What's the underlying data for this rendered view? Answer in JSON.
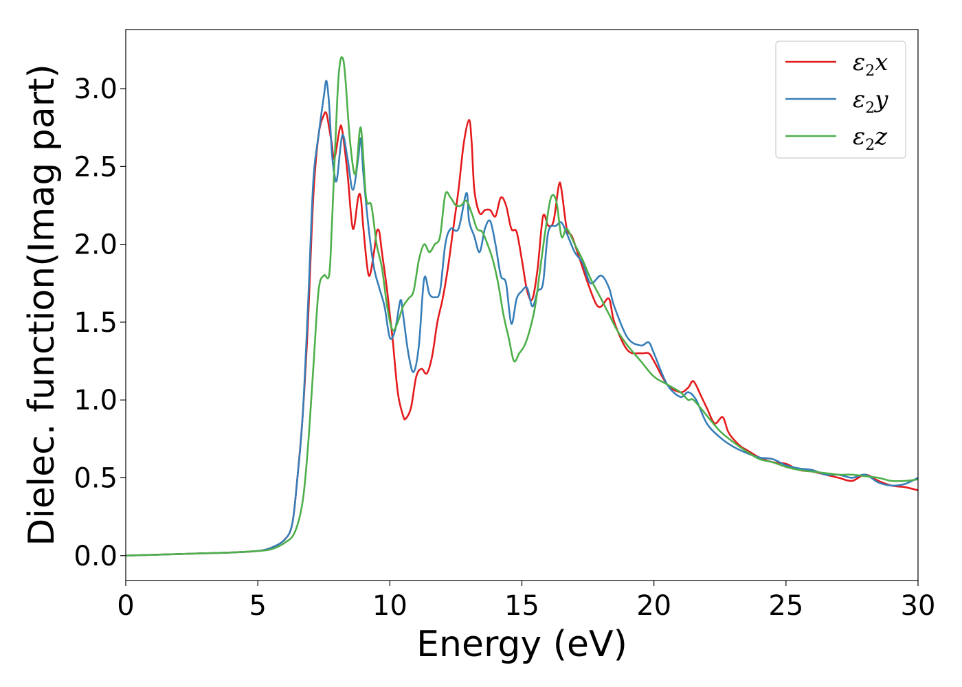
{
  "chart_data": {
    "type": "line",
    "xlabel": "Energy (eV)",
    "ylabel": "Dielec. function(Imag part)",
    "xlim": [
      0,
      30
    ],
    "ylim": [
      -0.16,
      3.38
    ],
    "xticks": [
      0,
      5,
      10,
      15,
      20,
      25,
      30
    ],
    "yticks": [
      0.0,
      0.5,
      1.0,
      1.5,
      2.0,
      2.5,
      3.0
    ],
    "xtick_labels": [
      "0",
      "5",
      "10",
      "15",
      "20",
      "25",
      "30"
    ],
    "ytick_labels": [
      "0.0",
      "0.5",
      "1.0",
      "1.5",
      "2.0",
      "2.5",
      "3.0"
    ],
    "grid": false,
    "legend_position": "top-right",
    "series": [
      {
        "name": "ε2x",
        "base": "ε",
        "sub": "2",
        "var": "x",
        "color": "#e41a1c",
        "x": [
          0,
          1,
          2,
          3,
          4,
          5,
          5.5,
          6,
          6.3,
          6.5,
          6.7,
          6.9,
          7.1,
          7.3,
          7.5,
          7.6,
          7.7,
          7.8,
          7.9,
          8.1,
          8.2,
          8.4,
          8.6,
          8.8,
          8.9,
          9.0,
          9.2,
          9.4,
          9.5,
          9.6,
          9.7,
          9.9,
          10.1,
          10.3,
          10.5,
          10.6,
          10.8,
          11.0,
          11.2,
          11.4,
          11.6,
          11.8,
          12.0,
          12.2,
          12.4,
          12.6,
          12.8,
          13.0,
          13.1,
          13.2,
          13.4,
          13.6,
          13.8,
          14.0,
          14.2,
          14.4,
          14.6,
          14.8,
          15.0,
          15.2,
          15.4,
          15.6,
          15.8,
          16.0,
          16.2,
          16.4,
          16.5,
          16.7,
          16.9,
          17.2,
          17.5,
          17.8,
          18.0,
          18.3,
          18.5,
          19.0,
          19.5,
          19.8,
          20.0,
          20.5,
          21.0,
          21.3,
          21.5,
          21.8,
          22.0,
          22.3,
          22.6,
          22.8,
          23.0,
          23.3,
          23.5,
          24.0,
          24.5,
          25.0,
          25.5,
          26.0,
          26.5,
          27.0,
          27.5,
          28.0,
          28.5,
          29.0,
          29.5,
          30.0
        ],
        "values": [
          0.0,
          0.005,
          0.01,
          0.015,
          0.02,
          0.03,
          0.05,
          0.1,
          0.2,
          0.5,
          0.9,
          1.5,
          2.3,
          2.7,
          2.83,
          2.84,
          2.75,
          2.65,
          2.55,
          2.74,
          2.73,
          2.45,
          2.1,
          2.3,
          2.3,
          2.1,
          1.8,
          1.95,
          2.08,
          2.08,
          1.95,
          1.7,
          1.4,
          1.05,
          0.9,
          0.88,
          0.95,
          1.15,
          1.2,
          1.17,
          1.28,
          1.5,
          1.65,
          1.85,
          2.1,
          2.35,
          2.65,
          2.8,
          2.65,
          2.35,
          2.2,
          2.22,
          2.22,
          2.18,
          2.3,
          2.25,
          2.1,
          2.08,
          1.9,
          1.7,
          1.65,
          1.85,
          2.18,
          2.12,
          2.15,
          2.38,
          2.35,
          2.1,
          2.05,
          1.9,
          1.75,
          1.62,
          1.6,
          1.65,
          1.5,
          1.32,
          1.3,
          1.3,
          1.25,
          1.1,
          1.05,
          1.08,
          1.12,
          1.02,
          0.95,
          0.85,
          0.89,
          0.8,
          0.75,
          0.7,
          0.68,
          0.63,
          0.6,
          0.59,
          0.55,
          0.54,
          0.52,
          0.5,
          0.48,
          0.52,
          0.48,
          0.45,
          0.44,
          0.42
        ]
      },
      {
        "name": "ε2y",
        "base": "ε",
        "sub": "2",
        "var": "y",
        "color": "#377eb8",
        "x": [
          0,
          1,
          2,
          3,
          4,
          5,
          5.5,
          6,
          6.3,
          6.5,
          6.7,
          6.9,
          7.1,
          7.3,
          7.5,
          7.6,
          7.7,
          7.8,
          7.9,
          8.0,
          8.2,
          8.4,
          8.6,
          8.8,
          8.9,
          9.0,
          9.2,
          9.4,
          9.6,
          9.8,
          10.0,
          10.2,
          10.4,
          10.5,
          10.7,
          10.9,
          11.1,
          11.3,
          11.5,
          11.7,
          11.9,
          12.1,
          12.3,
          12.6,
          12.9,
          13.0,
          13.2,
          13.4,
          13.6,
          13.8,
          14.0,
          14.2,
          14.4,
          14.6,
          14.8,
          15.0,
          15.2,
          15.4,
          15.6,
          15.8,
          16.0,
          16.3,
          16.5,
          16.7,
          17.0,
          17.3,
          17.6,
          18.0,
          18.3,
          18.5,
          19.0,
          19.5,
          19.8,
          20.0,
          20.5,
          21.0,
          21.3,
          21.6,
          22.0,
          22.5,
          23.0,
          23.5,
          24.0,
          24.5,
          25.0,
          25.5,
          26.0,
          26.5,
          27.0,
          27.5,
          28.0,
          28.5,
          29.0,
          29.5,
          30.0
        ],
        "values": [
          0.0,
          0.005,
          0.01,
          0.015,
          0.02,
          0.03,
          0.05,
          0.1,
          0.2,
          0.5,
          0.9,
          1.6,
          2.4,
          2.7,
          2.95,
          3.05,
          2.9,
          2.6,
          2.45,
          2.42,
          2.7,
          2.55,
          2.35,
          2.55,
          2.68,
          2.45,
          2.1,
          1.85,
          1.72,
          1.6,
          1.4,
          1.45,
          1.64,
          1.55,
          1.3,
          1.18,
          1.35,
          1.78,
          1.68,
          1.66,
          1.7,
          2.0,
          2.1,
          2.1,
          2.33,
          2.15,
          2.05,
          1.95,
          2.1,
          2.15,
          2.0,
          1.8,
          1.75,
          1.49,
          1.65,
          1.7,
          1.72,
          1.6,
          1.7,
          1.75,
          2.08,
          2.12,
          2.14,
          2.07,
          1.95,
          1.88,
          1.75,
          1.8,
          1.72,
          1.6,
          1.4,
          1.35,
          1.37,
          1.3,
          1.1,
          1.02,
          1.05,
          1.0,
          0.85,
          0.76,
          0.7,
          0.66,
          0.63,
          0.62,
          0.58,
          0.56,
          0.55,
          0.52,
          0.52,
          0.5,
          0.52,
          0.47,
          0.45,
          0.46,
          0.5
        ]
      },
      {
        "name": "ε2z",
        "base": "ε",
        "sub": "2",
        "var": "z",
        "color": "#4daf4a",
        "x": [
          0,
          1,
          2,
          3,
          4,
          5,
          5.5,
          6,
          6.4,
          6.7,
          6.9,
          7.1,
          7.3,
          7.5,
          7.7,
          7.8,
          8.0,
          8.1,
          8.2,
          8.3,
          8.5,
          8.7,
          8.9,
          9.1,
          9.3,
          9.5,
          9.7,
          9.9,
          10.1,
          10.3,
          10.5,
          10.7,
          10.9,
          11.1,
          11.3,
          11.5,
          11.7,
          11.9,
          12.1,
          12.3,
          12.5,
          12.7,
          12.9,
          13.1,
          13.3,
          13.5,
          13.7,
          13.9,
          14.1,
          14.3,
          14.5,
          14.7,
          14.9,
          15.1,
          15.3,
          15.5,
          15.7,
          15.9,
          16.1,
          16.3,
          16.5,
          16.7,
          17.0,
          17.3,
          17.6,
          18.0,
          18.3,
          18.6,
          19.0,
          19.5,
          20.0,
          20.5,
          21.0,
          21.3,
          21.5,
          22.0,
          22.5,
          23.0,
          23.5,
          24.0,
          24.5,
          25.0,
          25.5,
          26.0,
          26.5,
          27.0,
          27.5,
          28.0,
          28.5,
          29.0,
          29.5,
          30.0
        ],
        "values": [
          0.0,
          0.005,
          0.01,
          0.015,
          0.02,
          0.03,
          0.04,
          0.08,
          0.15,
          0.35,
          0.7,
          1.2,
          1.7,
          1.8,
          1.8,
          2.1,
          2.9,
          3.15,
          3.2,
          3.1,
          2.65,
          2.45,
          2.75,
          2.3,
          2.25,
          2.0,
          1.85,
          1.6,
          1.45,
          1.5,
          1.6,
          1.65,
          1.7,
          1.9,
          2.0,
          1.95,
          2.0,
          2.05,
          2.32,
          2.3,
          2.25,
          2.25,
          2.28,
          2.2,
          2.1,
          2.08,
          2.0,
          1.9,
          1.75,
          1.55,
          1.4,
          1.25,
          1.3,
          1.35,
          1.45,
          1.6,
          1.85,
          2.1,
          2.3,
          2.28,
          2.05,
          2.1,
          2.0,
          1.9,
          1.78,
          1.65,
          1.55,
          1.45,
          1.35,
          1.25,
          1.15,
          1.1,
          1.05,
          1.0,
          1.0,
          0.9,
          0.8,
          0.73,
          0.67,
          0.62,
          0.6,
          0.57,
          0.55,
          0.54,
          0.53,
          0.52,
          0.52,
          0.51,
          0.5,
          0.48,
          0.48,
          0.49
        ]
      }
    ]
  }
}
